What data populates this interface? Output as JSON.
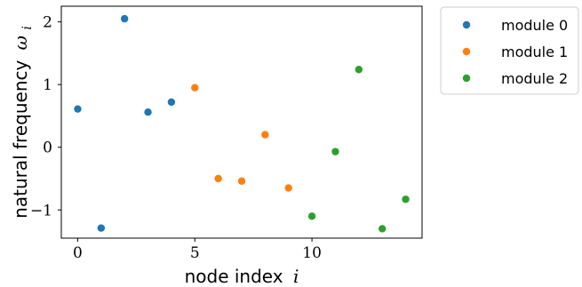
{
  "chart_data": {
    "type": "scatter",
    "xlabel": "node index",
    "xlabel_var": "i",
    "ylabel": "natural frequency",
    "ylabel_var": "ω",
    "ylabel_sub": "i",
    "xlim": [
      -0.7,
      14.7
    ],
    "ylim": [
      -1.45,
      2.25
    ],
    "x_ticks": [
      0,
      5,
      10
    ],
    "x_tick_labels": [
      "0",
      "5",
      "10"
    ],
    "y_ticks": [
      -1,
      0,
      1,
      2
    ],
    "y_tick_labels": [
      "−1",
      "0",
      "1",
      "2"
    ],
    "grid": false,
    "legend_position": "outside-top-right",
    "series": [
      {
        "name": "module 0",
        "color": "#1f77b4",
        "x": [
          0,
          1,
          2,
          3,
          4
        ],
        "y": [
          0.61,
          -1.29,
          2.05,
          0.56,
          0.72
        ]
      },
      {
        "name": "module 1",
        "color": "#ff7f0e",
        "x": [
          5,
          6,
          7,
          8,
          9
        ],
        "y": [
          0.95,
          -0.5,
          -0.54,
          0.2,
          -0.65
        ]
      },
      {
        "name": "module 2",
        "color": "#2ca02c",
        "x": [
          10,
          11,
          12,
          13,
          14
        ],
        "y": [
          -1.1,
          -0.07,
          1.24,
          -1.3,
          -0.83
        ]
      }
    ]
  }
}
